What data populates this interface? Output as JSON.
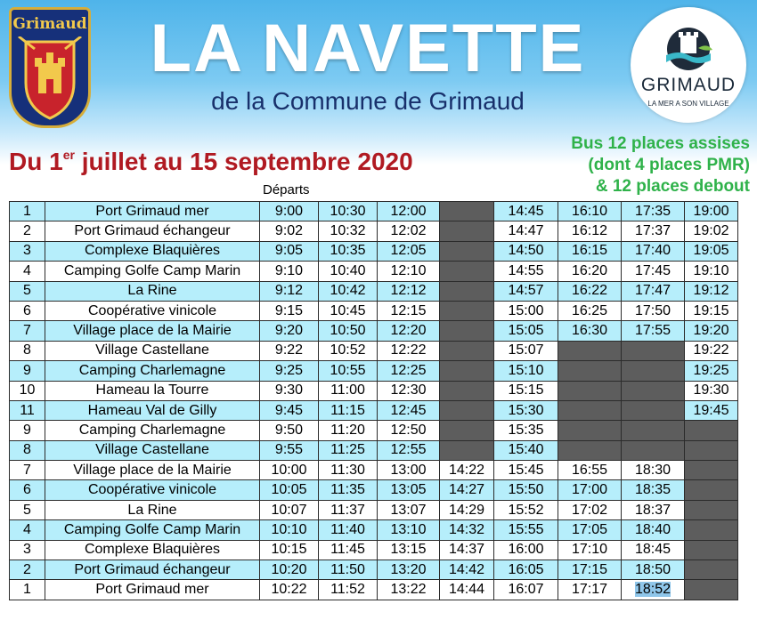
{
  "header": {
    "crest_label": "Grimaud",
    "title": "LA NAVETTE",
    "subtitle": "de la Commune de Grimaud",
    "logo_name": "GRIMAUD",
    "logo_tagline": "LA MER A SON VILLAGE"
  },
  "dates": {
    "prefix": "Du 1",
    "superscript": "er",
    "rest": " juillet au 15 septembre 2020"
  },
  "bus_info": {
    "line1": "Bus 12 places assises",
    "line2": "(dont 4 places PMR)",
    "line3": "& 12 places debout"
  },
  "departs_label": "Départs",
  "colors": {
    "title": "#ffffff",
    "dates": "#b01a22",
    "bus_info": "#2fb24a",
    "row_highlight": "#b6eefb",
    "no_service": "#5d5d5d"
  },
  "rows": [
    {
      "num": "1",
      "stop": "Port Grimaud mer",
      "times": [
        "9:00",
        "10:30",
        "12:00",
        "",
        "14:45",
        "16:10",
        "17:35",
        "19:00"
      ]
    },
    {
      "num": "2",
      "stop": "Port Grimaud échangeur",
      "times": [
        "9:02",
        "10:32",
        "12:02",
        "",
        "14:47",
        "16:12",
        "17:37",
        "19:02"
      ]
    },
    {
      "num": "3",
      "stop": "Complexe Blaquières",
      "times": [
        "9:05",
        "10:35",
        "12:05",
        "",
        "14:50",
        "16:15",
        "17:40",
        "19:05"
      ]
    },
    {
      "num": "4",
      "stop": "Camping Golfe Camp Marin",
      "times": [
        "9:10",
        "10:40",
        "12:10",
        "",
        "14:55",
        "16:20",
        "17:45",
        "19:10"
      ]
    },
    {
      "num": "5",
      "stop": "La Rine",
      "times": [
        "9:12",
        "10:42",
        "12:12",
        "",
        "14:57",
        "16:22",
        "17:47",
        "19:12"
      ]
    },
    {
      "num": "6",
      "stop": "Coopérative vinicole",
      "times": [
        "9:15",
        "10:45",
        "12:15",
        "",
        "15:00",
        "16:25",
        "17:50",
        "19:15"
      ]
    },
    {
      "num": "7",
      "stop": "Village place de la Mairie",
      "times": [
        "9:20",
        "10:50",
        "12:20",
        "",
        "15:05",
        "16:30",
        "17:55",
        "19:20"
      ]
    },
    {
      "num": "8",
      "stop": "Village Castellane",
      "times": [
        "9:22",
        "10:52",
        "12:22",
        "",
        "15:07",
        "",
        "",
        "19:22"
      ]
    },
    {
      "num": "9",
      "stop": "Camping Charlemagne",
      "times": [
        "9:25",
        "10:55",
        "12:25",
        "",
        "15:10",
        "",
        "",
        "19:25"
      ]
    },
    {
      "num": "10",
      "stop": "Hameau la Tourre",
      "times": [
        "9:30",
        "11:00",
        "12:30",
        "",
        "15:15",
        "",
        "",
        "19:30"
      ]
    },
    {
      "num": "11",
      "stop": "Hameau Val de Gilly",
      "times": [
        "9:45",
        "11:15",
        "12:45",
        "",
        "15:30",
        "",
        "",
        "19:45"
      ]
    },
    {
      "num": "9",
      "stop": "Camping Charlemagne",
      "times": [
        "9:50",
        "11:20",
        "12:50",
        "",
        "15:35",
        "",
        "",
        ""
      ]
    },
    {
      "num": "8",
      "stop": "Village Castellane",
      "times": [
        "9:55",
        "11:25",
        "12:55",
        "",
        "15:40",
        "",
        "",
        ""
      ]
    },
    {
      "num": "7",
      "stop": "Village place de la Mairie",
      "times": [
        "10:00",
        "11:30",
        "13:00",
        "14:22",
        "15:45",
        "16:55",
        "18:30",
        ""
      ]
    },
    {
      "num": "6",
      "stop": "Coopérative vinicole",
      "times": [
        "10:05",
        "11:35",
        "13:05",
        "14:27",
        "15:50",
        "17:00",
        "18:35",
        ""
      ]
    },
    {
      "num": "5",
      "stop": "La Rine",
      "times": [
        "10:07",
        "11:37",
        "13:07",
        "14:29",
        "15:52",
        "17:02",
        "18:37",
        ""
      ]
    },
    {
      "num": "4",
      "stop": "Camping Golfe Camp Marin",
      "times": [
        "10:10",
        "11:40",
        "13:10",
        "14:32",
        "15:55",
        "17:05",
        "18:40",
        ""
      ]
    },
    {
      "num": "3",
      "stop": "Complexe Blaquières",
      "times": [
        "10:15",
        "11:45",
        "13:15",
        "14:37",
        "16:00",
        "17:10",
        "18:45",
        ""
      ]
    },
    {
      "num": "2",
      "stop": "Port Grimaud échangeur",
      "times": [
        "10:20",
        "11:50",
        "13:20",
        "14:42",
        "16:05",
        "17:15",
        "18:50",
        ""
      ]
    },
    {
      "num": "1",
      "stop": "Port Grimaud mer",
      "times": [
        "10:22",
        "11:52",
        "13:22",
        "14:44",
        "16:07",
        "17:17",
        "18:52",
        ""
      ]
    }
  ]
}
